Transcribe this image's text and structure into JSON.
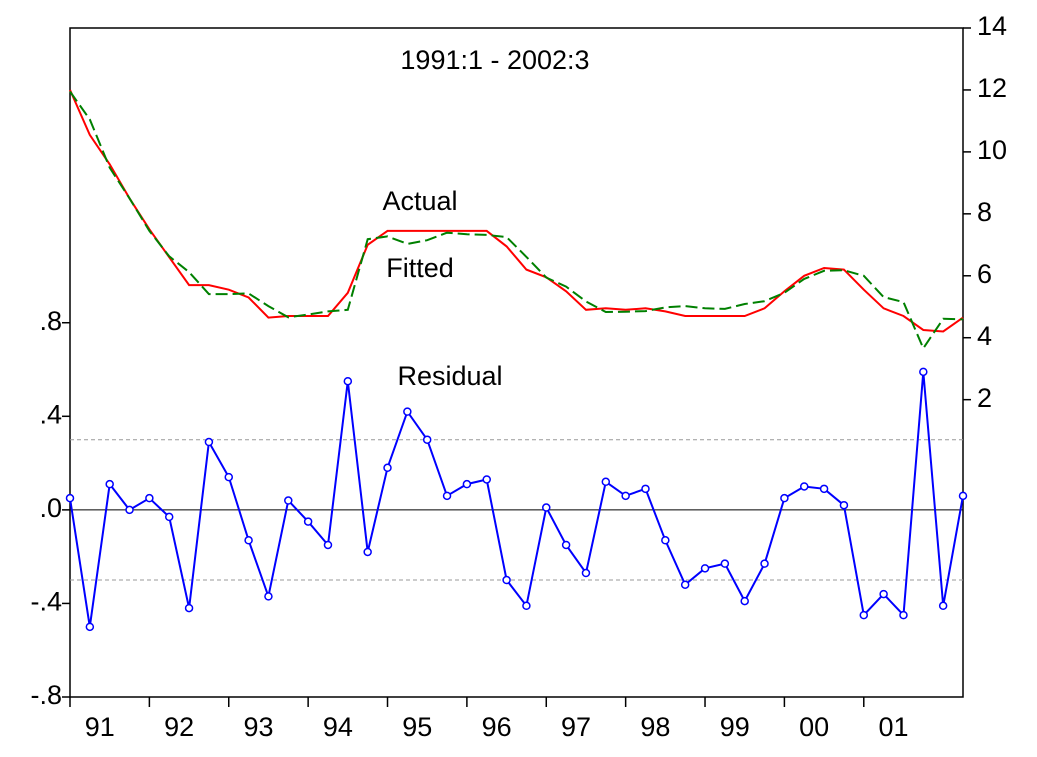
{
  "chart_data": {
    "type": "line",
    "title": "1991:1 - 2002:3",
    "categories": [
      "91",
      null,
      null,
      null,
      "92",
      null,
      null,
      null,
      "93",
      null,
      null,
      null,
      "94",
      null,
      null,
      null,
      "95",
      null,
      null,
      null,
      "96",
      null,
      null,
      null,
      "97",
      null,
      null,
      null,
      "98",
      null,
      null,
      null,
      "99",
      null,
      null,
      null,
      "00",
      null,
      null,
      null,
      "01",
      null,
      null,
      null,
      null,
      null
    ],
    "series": [
      {
        "name": "Residual",
        "color": "#0000ff",
        "axis": "y",
        "markers": true,
        "values": [
          0.05,
          -0.5,
          0.11,
          0.0,
          0.05,
          -0.03,
          -0.42,
          0.29,
          0.14,
          -0.13,
          -0.37,
          0.04,
          -0.05,
          -0.15,
          0.55,
          -0.18,
          0.18,
          0.42,
          0.3,
          0.06,
          0.11,
          0.13,
          -0.3,
          -0.41,
          0.01,
          -0.15,
          -0.27,
          0.12,
          0.06,
          0.09,
          -0.13,
          -0.32,
          -0.25,
          -0.23,
          -0.39,
          -0.23,
          0.05,
          0.1,
          0.09,
          0.02,
          -0.45,
          -0.36,
          -0.45,
          0.59,
          -0.41,
          0.06
        ]
      },
      {
        "name": "Actual",
        "color": "#ff0000",
        "axis": "y2",
        "values": [
          12.0,
          10.55,
          9.6,
          8.5,
          7.5,
          6.6,
          5.7,
          5.7,
          5.55,
          5.3,
          4.65,
          4.7,
          4.7,
          4.7,
          5.45,
          7.0,
          7.45,
          7.45,
          7.45,
          7.45,
          7.45,
          7.45,
          6.95,
          6.2,
          5.95,
          5.5,
          4.9,
          4.95,
          4.9,
          4.95,
          4.85,
          4.7,
          4.7,
          4.7,
          4.7,
          4.95,
          5.5,
          6.0,
          6.25,
          6.2,
          5.55,
          4.95,
          4.7,
          4.25,
          4.2,
          4.65
        ]
      },
      {
        "name": "Fitted",
        "color": "#008000",
        "axis": "y2",
        "dashed": true,
        "values": [
          11.95,
          11.05,
          9.49,
          8.5,
          7.45,
          6.63,
          6.12,
          5.41,
          5.41,
          5.43,
          5.02,
          4.66,
          4.75,
          4.85,
          4.9,
          7.18,
          7.27,
          7.03,
          7.15,
          7.39,
          7.34,
          7.32,
          7.25,
          6.61,
          5.94,
          5.65,
          5.17,
          4.83,
          4.84,
          4.86,
          4.98,
          5.02,
          4.95,
          4.93,
          5.09,
          5.18,
          5.45,
          5.9,
          6.16,
          6.18,
          6.0,
          5.31,
          5.15,
          3.66,
          4.61,
          4.59
        ]
      }
    ],
    "ylim": [
      -0.8,
      2.06
    ],
    "yticks": [
      {
        "value": -0.8,
        "label": "-.8"
      },
      {
        "value": -0.4,
        "label": "-.4"
      },
      {
        "value": 0,
        "label": ".0"
      },
      {
        "value": 0.4,
        "label": ".4"
      },
      {
        "value": 0.8,
        "label": ".8"
      }
    ],
    "y2lim": [
      -7.6,
      14
    ],
    "y2ticks": [
      2,
      4,
      6,
      8,
      10,
      12,
      14
    ],
    "zero_line": 0,
    "reference_lines": [
      0.3,
      -0.3
    ]
  }
}
